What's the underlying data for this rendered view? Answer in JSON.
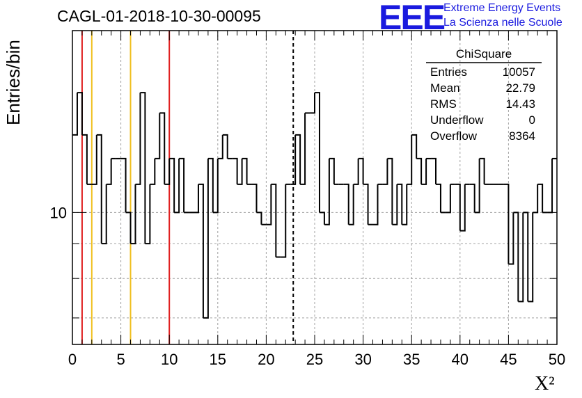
{
  "chart_data": {
    "type": "bar",
    "title": "CAGL-01-2018-10-30-00095",
    "xlabel": "X²",
    "ylabel": "Entries/bin",
    "xlim": [
      0,
      50
    ],
    "ylim": [
      6.4,
      18.5
    ],
    "yscale": "log",
    "x_ticks": [
      "0",
      "5",
      "10",
      "15",
      "20",
      "25",
      "30",
      "35",
      "40",
      "45",
      "50"
    ],
    "y_tick_label": "10",
    "bin_width": 0.5,
    "grid": true,
    "values": [
      13,
      15,
      13,
      11,
      11,
      13,
      9,
      11,
      12,
      12,
      12,
      10,
      9,
      11,
      15,
      9,
      11,
      12,
      14,
      11,
      12,
      10,
      12,
      10,
      10,
      10,
      11,
      7,
      12,
      10,
      12,
      13,
      12,
      12,
      11,
      12,
      11,
      11,
      10,
      9.6,
      9.6,
      11,
      8.6,
      8.6,
      11,
      11,
      13,
      11,
      14,
      14,
      15,
      10,
      9.6,
      12,
      11,
      11,
      11,
      9.6,
      11,
      12,
      11,
      9.6,
      9.6,
      11,
      11,
      12,
      9.6,
      11,
      9.6,
      11,
      13,
      12,
      11,
      12,
      12,
      11,
      10,
      10,
      11,
      11,
      9.4,
      11,
      11,
      10,
      12,
      11,
      11,
      11,
      11,
      11,
      8.4,
      10,
      7.4,
      10,
      7.4,
      10,
      11,
      10,
      10,
      12
    ],
    "vertical_lines": [
      {
        "x": 1,
        "color": "#e02020",
        "style": "solid"
      },
      {
        "x": 2,
        "color": "#f0c020",
        "style": "solid"
      },
      {
        "x": 6,
        "color": "#f0c020",
        "style": "solid"
      },
      {
        "x": 10,
        "color": "#e02020",
        "style": "solid"
      },
      {
        "x": 22.79,
        "color": "#000000",
        "style": "dashed"
      }
    ],
    "stats": {
      "name": "ChiSquare",
      "rows": [
        {
          "label": "Entries",
          "value": "10057"
        },
        {
          "label": "Mean",
          "value": "22.79"
        },
        {
          "label": "RMS",
          "value": "14.43"
        },
        {
          "label": "Underflow",
          "value": "0"
        },
        {
          "label": "Overflow",
          "value": "8364"
        }
      ]
    }
  },
  "logo": {
    "mark": "EEE",
    "line1": "Extreme Energy Events",
    "line2": "La Scienza nelle Scuole",
    "color": "#1a1adf"
  }
}
